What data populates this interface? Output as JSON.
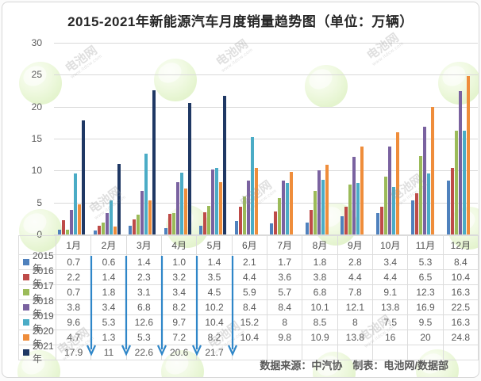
{
  "title": "2015-2021年新能源汽车月度销量趋势图（单位：万辆）",
  "footer": "数据来源：中汽协　制表：电池网/数据部",
  "watermark": {
    "text": "电池网",
    "subtext": "www.itdcw.com"
  },
  "chart_data": {
    "type": "bar",
    "title": "2015-2021年新能源汽车月度销量趋势图（单位：万辆）",
    "unit": "万辆",
    "categories": [
      "1月",
      "2月",
      "3月",
      "4月",
      "5月",
      "6月",
      "7月",
      "8月",
      "9月",
      "10月",
      "11月",
      "12月"
    ],
    "series": [
      {
        "name": "2015年",
        "color": "#4F81BD",
        "values": [
          "0.7",
          "0.6",
          "1.4",
          "1.0",
          "1.4",
          "2.1",
          "1.7",
          "1.8",
          "2.8",
          "3.4",
          "5.3",
          "8.4"
        ]
      },
      {
        "name": "2016年",
        "color": "#BE4B48",
        "values": [
          "2.2",
          "1.4",
          "2.3",
          "3.2",
          "3.5",
          "4.4",
          "3.6",
          "3.8",
          "4.4",
          "4.4",
          "6.5",
          "10.4"
        ]
      },
      {
        "name": "2017年",
        "color": "#9BBB59",
        "values": [
          "0.7",
          "1.8",
          "3.1",
          "3.4",
          "4.5",
          "5.9",
          "5.7",
          "6.8",
          "7.8",
          "9.1",
          "12.3",
          "16.3"
        ]
      },
      {
        "name": "2018年",
        "color": "#7A62A0",
        "values": [
          "3.8",
          "3.4",
          "6.8",
          "8.2",
          "10.2",
          "8.4",
          "8.4",
          "10.1",
          "12.1",
          "13.8",
          "16.9",
          "22.5"
        ]
      },
      {
        "name": "2019年",
        "color": "#4BACC6",
        "values": [
          "9.6",
          "5.3",
          "12.6",
          "9.7",
          "10.4",
          "15.2",
          "8",
          "8.5",
          "8",
          "7.5",
          "9.5",
          "16.3"
        ]
      },
      {
        "name": "2020年",
        "color": "#EF8D3B",
        "values": [
          "4.7",
          "1.3",
          "5.3",
          "7.2",
          "8.2",
          "10.4",
          "9.8",
          "10.9",
          "13.8",
          "16",
          "20",
          "24.8"
        ]
      },
      {
        "name": "2021年",
        "color": "#1F3864",
        "values": [
          "17.9",
          "11",
          "22.6",
          "20.6",
          "21.7",
          "",
          "",
          "",
          "",
          "",
          "",
          ""
        ]
      }
    ],
    "ylim": [
      0,
      30
    ],
    "yticks": [
      "30",
      "25",
      "20",
      "15",
      "10",
      "5",
      "0"
    ],
    "grid": true,
    "legend_position": "table-left",
    "annotations": {
      "arrow_color": "#2E86C8",
      "arrow_columns": [
        "1月",
        "2月",
        "3月",
        "4月",
        "5月"
      ]
    }
  }
}
